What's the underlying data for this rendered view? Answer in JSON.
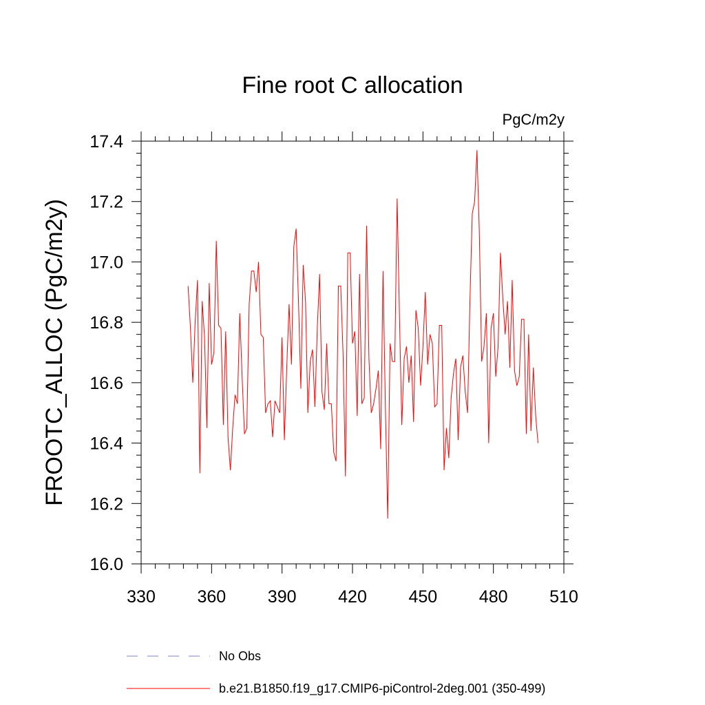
{
  "chart_data": {
    "type": "line",
    "title": "Fine root C allocation",
    "units_label": "PgC/m2y",
    "xlabel": "",
    "ylabel": "FROOTC_ALLOC  (PgC/m2y)",
    "xlim": [
      330,
      510
    ],
    "ylim": [
      16.0,
      17.4
    ],
    "xticks": [
      "330",
      "360",
      "390",
      "420",
      "450",
      "480",
      "510"
    ],
    "yticks": [
      "16.0",
      "16.2",
      "16.4",
      "16.6",
      "16.8",
      "17.0",
      "17.2",
      "17.4"
    ],
    "x": [
      350,
      351,
      352,
      353,
      354,
      355,
      356,
      357,
      358,
      359,
      360,
      361,
      362,
      363,
      364,
      365,
      366,
      367,
      368,
      369,
      370,
      371,
      372,
      373,
      374,
      375,
      376,
      377,
      378,
      379,
      380,
      381,
      382,
      383,
      384,
      385,
      386,
      387,
      388,
      389,
      390,
      391,
      392,
      393,
      394,
      395,
      396,
      397,
      398,
      399,
      400,
      401,
      402,
      403,
      404,
      405,
      406,
      407,
      408,
      409,
      410,
      411,
      412,
      413,
      414,
      415,
      416,
      417,
      418,
      419,
      420,
      421,
      422,
      423,
      424,
      425,
      426,
      427,
      428,
      429,
      430,
      431,
      432,
      433,
      434,
      435,
      436,
      437,
      438,
      439,
      440,
      441,
      442,
      443,
      444,
      445,
      446,
      447,
      448,
      449,
      450,
      451,
      452,
      453,
      454,
      455,
      456,
      457,
      458,
      459,
      460,
      461,
      462,
      463,
      464,
      465,
      466,
      467,
      468,
      469,
      470,
      471,
      472,
      473,
      474,
      475,
      476,
      477,
      478,
      479,
      480,
      481,
      482,
      483,
      484,
      485,
      486,
      487,
      488,
      489,
      490,
      491,
      492,
      493,
      494,
      495,
      496,
      497,
      498,
      499
    ],
    "series": [
      {
        "name": "b.e21.B1850.f19_g17.CMIP6-piControl-2deg.001 (350-499)",
        "color": "#ff0000",
        "values": [
          16.92,
          16.78,
          16.6,
          16.8,
          16.94,
          16.3,
          16.87,
          16.75,
          16.45,
          16.93,
          16.66,
          16.7,
          17.07,
          16.79,
          16.78,
          16.46,
          16.77,
          16.42,
          16.31,
          16.45,
          16.56,
          16.53,
          16.83,
          16.62,
          16.43,
          16.45,
          16.86,
          16.97,
          16.97,
          16.9,
          17.0,
          16.76,
          16.75,
          16.5,
          16.53,
          16.54,
          16.42,
          16.54,
          16.52,
          16.5,
          16.75,
          16.41,
          16.65,
          16.86,
          16.66,
          17.05,
          17.11,
          16.87,
          16.58,
          16.99,
          16.87,
          16.5,
          16.67,
          16.71,
          16.52,
          16.78,
          16.96,
          16.57,
          16.51,
          16.73,
          16.53,
          16.53,
          16.37,
          16.34,
          16.92,
          16.92,
          16.69,
          16.29,
          17.03,
          17.03,
          16.73,
          16.77,
          16.49,
          16.96,
          16.53,
          16.55,
          17.12,
          16.68,
          16.5,
          16.53,
          16.58,
          16.64,
          16.38,
          16.97,
          16.52,
          16.15,
          16.73,
          16.67,
          16.67,
          17.21,
          16.82,
          16.46,
          16.68,
          16.72,
          16.6,
          16.69,
          16.47,
          16.84,
          16.78,
          16.59,
          16.72,
          16.9,
          16.66,
          16.76,
          16.73,
          16.52,
          16.53,
          16.79,
          16.79,
          16.31,
          16.45,
          16.35,
          16.55,
          16.63,
          16.68,
          16.41,
          16.65,
          16.69,
          16.57,
          16.5,
          16.87,
          17.16,
          17.2,
          17.37,
          17.1,
          16.67,
          16.72,
          16.83,
          16.4,
          16.78,
          16.83,
          16.62,
          16.72,
          17.03,
          16.88,
          16.76,
          16.87,
          16.65,
          16.94,
          16.64,
          16.59,
          16.62,
          16.81,
          16.81,
          16.43,
          16.76,
          16.44,
          16.65,
          16.49,
          16.4
        ]
      }
    ],
    "legend": [
      {
        "label": "No Obs",
        "style": "dashed",
        "color": "#7f7fbf"
      },
      {
        "label": "b.e21.B1850.f19_g17.CMIP6-piControl-2deg.001 (350-499)",
        "style": "solid",
        "color": "#ff0000"
      }
    ]
  }
}
